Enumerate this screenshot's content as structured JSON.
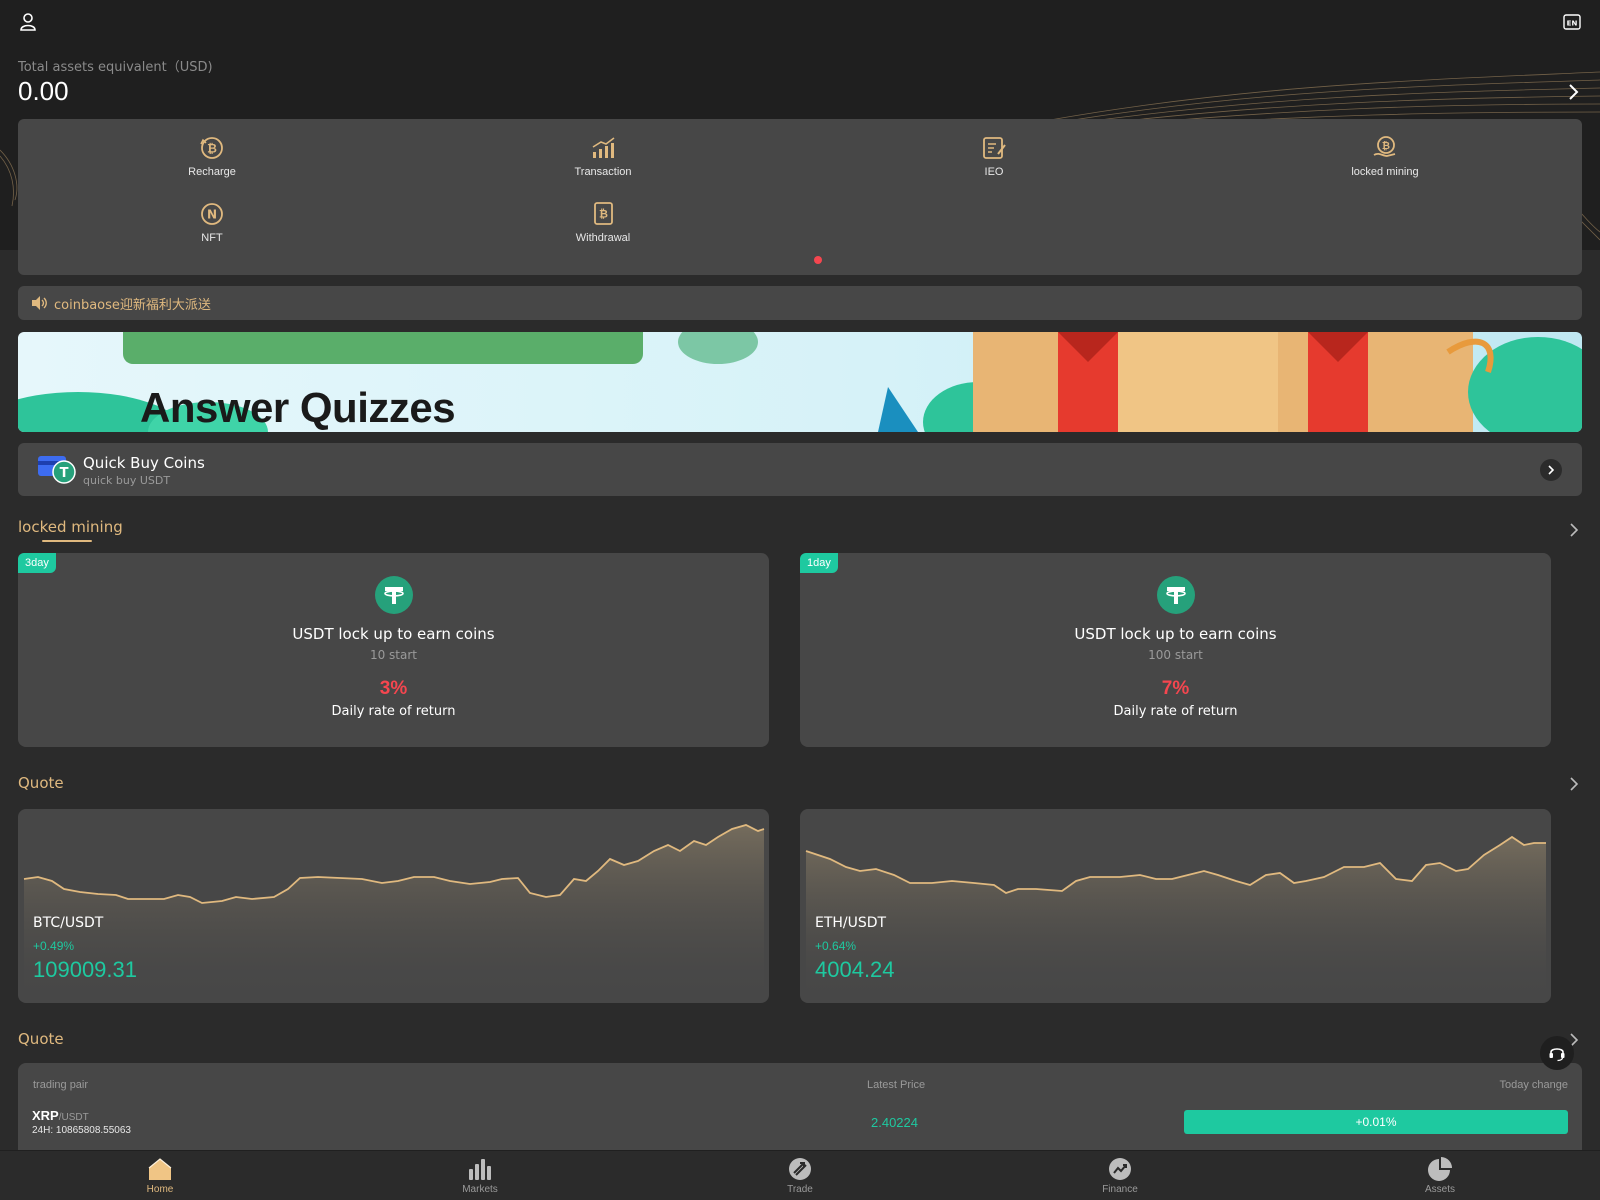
{
  "header": {
    "assets_label": "Total assets equivalent（USD)",
    "assets_value": "0.00",
    "lang_icon": "EN"
  },
  "quick_actions": [
    {
      "label": "Recharge",
      "icon": "bitcoin-cycle-icon"
    },
    {
      "label": "Transaction",
      "icon": "chart-trend-icon"
    },
    {
      "label": "IEO",
      "icon": "document-pen-icon"
    },
    {
      "label": "locked mining",
      "icon": "bitcoin-hand-icon"
    },
    {
      "label": "NFT",
      "icon": "nft-coin-icon"
    },
    {
      "label": "Withdrawal",
      "icon": "bitcoin-doc-icon"
    }
  ],
  "notice": {
    "text": "coinbaose迎新福利大派送"
  },
  "banner": {
    "title": "Answer Quizzes"
  },
  "quick_buy": {
    "title": "Quick Buy Coins",
    "subtitle": "quick buy USDT"
  },
  "locked_mining": {
    "title": "locked mining",
    "cards": [
      {
        "tag": "3day",
        "title": "USDT lock up to earn coins",
        "start": "10 start",
        "rate": "3%",
        "rate_label": "Daily rate of return"
      },
      {
        "tag": "1day",
        "title": "USDT lock up to earn coins",
        "start": "100 start",
        "rate": "7%",
        "rate_label": "Daily rate of return"
      }
    ]
  },
  "quote": {
    "title": "Quote",
    "cards": [
      {
        "pair": "BTC/USDT",
        "change": "+0.49%",
        "price": "109009.31"
      },
      {
        "pair": "ETH/USDT",
        "change": "+0.64%",
        "price": "4004.24"
      }
    ]
  },
  "quote_table": {
    "title": "Quote",
    "headers": {
      "pair": "trading pair",
      "price": "Latest Price",
      "change": "Today change"
    },
    "rows": [
      {
        "base": "XRP",
        "quote": "/USDT",
        "volume": "24H: 10865808.55063",
        "price": "2.40224",
        "change": "+0.01%"
      }
    ]
  },
  "tabbar": [
    {
      "label": "Home",
      "active": true
    },
    {
      "label": "Markets",
      "active": false
    },
    {
      "label": "Trade",
      "active": false
    },
    {
      "label": "Finance",
      "active": false
    },
    {
      "label": "Assets",
      "active": false
    }
  ],
  "colors": {
    "accent": "#e0b97f",
    "up": "#1ec9a0",
    "down": "#f5464f",
    "panel": "#474747",
    "bg": "#2b2b2b"
  }
}
